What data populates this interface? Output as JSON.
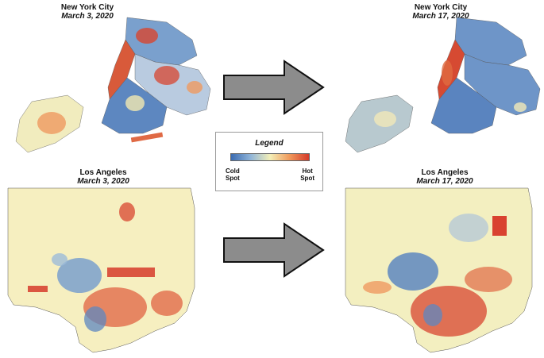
{
  "maps": {
    "nyc_before": {
      "city": "New York City",
      "date": "March 3, 2020"
    },
    "nyc_after": {
      "city": "New York City",
      "date": "March 17, 2020"
    },
    "la_before": {
      "city": "Los Angeles",
      "date": "March 3, 2020"
    },
    "la_after": {
      "city": "Los Angeles",
      "date": "March 17, 2020"
    }
  },
  "legend": {
    "title": "Legend",
    "cold_line1": "Cold",
    "cold_line2": "Spot",
    "hot_line1": "Hot",
    "hot_line2": "Spot",
    "colors": [
      "#3b6bb0",
      "#8fb4d8",
      "#f3efb8",
      "#f09a5c",
      "#d43a2a"
    ]
  },
  "colors": {
    "cold": "#4a78b8",
    "cool": "#9dbbd8",
    "neutral": "#f4efbf",
    "warm": "#f2a06a",
    "hot": "#d63b2a",
    "arrow_fill": "#8c8c8c",
    "border": "#555555"
  }
}
